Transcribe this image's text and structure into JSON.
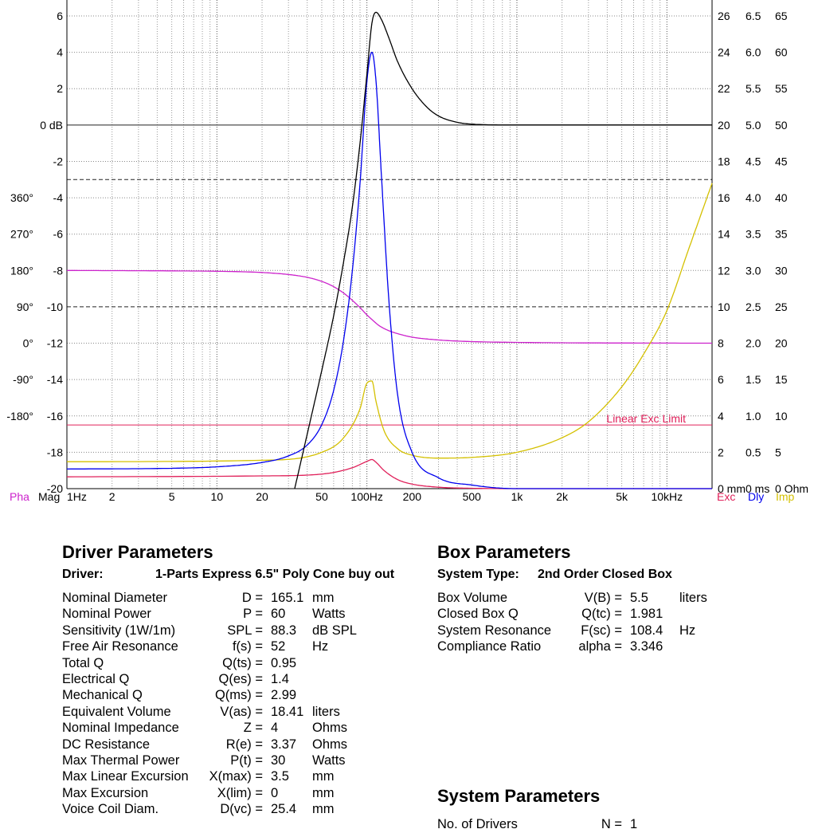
{
  "chart_data": {
    "type": "line",
    "xlabel": "",
    "x_scale": "log",
    "xlim": [
      1,
      20000
    ],
    "x_ticks": [
      {
        "v": 1,
        "label": "1Hz"
      },
      {
        "v": 2,
        "label": "2"
      },
      {
        "v": 5,
        "label": "5"
      },
      {
        "v": 10,
        "label": "10"
      },
      {
        "v": 20,
        "label": "20"
      },
      {
        "v": 50,
        "label": "50"
      },
      {
        "v": 100,
        "label": "100Hz"
      },
      {
        "v": 200,
        "label": "200"
      },
      {
        "v": 500,
        "label": "500"
      },
      {
        "v": 1000,
        "label": "1k"
      },
      {
        "v": 2000,
        "label": "2k"
      },
      {
        "v": 5000,
        "label": "5k"
      },
      {
        "v": 10000,
        "label": "10kHz"
      }
    ],
    "mag_axis": {
      "label": "Mag",
      "ylim": [
        -20,
        6
      ],
      "ticks": [
        "6",
        "4",
        "2",
        "0 dB",
        "-2",
        "-4",
        "-6",
        "-8",
        "-10",
        "-12",
        "-14",
        "-16",
        "-18",
        "-20"
      ]
    },
    "phase_axis": {
      "label": "Pha",
      "ticks": [
        "360°",
        "270°",
        "180°",
        "90°",
        "0°",
        "-90°",
        "-180°"
      ]
    },
    "exc_axis": {
      "label": "Exc",
      "unit": "0 mm",
      "ticks": [
        "26",
        "24",
        "22",
        "20",
        "18",
        "16",
        "14",
        "12",
        "10",
        "8",
        "6",
        "4",
        "2",
        "0 mm"
      ]
    },
    "dly_axis": {
      "label": "Dly",
      "unit": "0 ms",
      "ticks": [
        "6.5",
        "6.0",
        "5.5",
        "5.0",
        "4.5",
        "4.0",
        "3.5",
        "3.0",
        "2.5",
        "2.0",
        "1.5",
        "1.0",
        "0.5",
        "0 ms"
      ]
    },
    "imp_axis": {
      "label": "Imp",
      "unit": "0 Ohm",
      "ticks": [
        "65",
        "60",
        "55",
        "50",
        "45",
        "40",
        "35",
        "30",
        "25",
        "20",
        "15",
        "10",
        "5",
        "0 Ohm"
      ]
    },
    "annotations": [
      {
        "text": "Linear Exc Limit",
        "color": "#e0205a"
      }
    ],
    "series": [
      {
        "key": "magnitude",
        "color": "#000000",
        "x": [
          33,
          40,
          50,
          60,
          70,
          80,
          90,
          100,
          108,
          115,
          125,
          140,
          160,
          200,
          250,
          300,
          400,
          500,
          1000,
          20000
        ],
        "y": [
          -20,
          -17,
          -13.5,
          -10.5,
          -7.5,
          -4.5,
          -1,
          2.8,
          5.6,
          6.2,
          5.8,
          4.8,
          3.5,
          2.0,
          1.0,
          0.5,
          0.15,
          0.05,
          0,
          0
        ]
      },
      {
        "key": "phase",
        "color": "#cc22cc",
        "x": [
          1,
          5,
          10,
          20,
          30,
          40,
          50,
          60,
          70,
          80,
          90,
          100,
          110,
          120,
          140,
          170,
          200,
          300,
          500,
          1000,
          2000,
          20000
        ],
        "y": [
          180,
          179,
          178,
          175,
          170,
          163,
          153,
          140,
          124,
          106,
          88,
          70,
          56,
          44,
          31,
          21,
          15,
          8,
          4,
          2,
          1,
          0
        ]
      },
      {
        "key": "excursion",
        "color": "#e0205a",
        "x": [
          1,
          20,
          50,
          80,
          100,
          108,
          115,
          130,
          160,
          200,
          300,
          500,
          1000,
          20000
        ],
        "y": [
          0.65,
          0.7,
          0.8,
          1.15,
          1.5,
          1.6,
          1.45,
          1.0,
          0.5,
          0.25,
          0.08,
          0.02,
          0,
          0
        ]
      },
      {
        "key": "delay",
        "color": "#0000ee",
        "x": [
          1,
          5,
          10,
          20,
          30,
          40,
          50,
          60,
          70,
          80,
          90,
          100,
          108,
          115,
          125,
          140,
          160,
          200,
          300,
          500,
          1000,
          20000
        ],
        "y": [
          0.27,
          0.28,
          0.3,
          0.36,
          0.45,
          0.6,
          0.88,
          1.35,
          2.05,
          3.0,
          4.2,
          5.6,
          6.0,
          5.6,
          4.3,
          2.6,
          1.3,
          0.5,
          0.15,
          0.05,
          0,
          0
        ]
      },
      {
        "key": "impedance",
        "color": "#d4c000",
        "x": [
          1,
          20,
          50,
          70,
          90,
          100,
          108,
          115,
          130,
          160,
          200,
          300,
          500,
          1000,
          2000,
          3000,
          5000,
          7000,
          10000,
          14000,
          20000
        ],
        "y": [
          3.7,
          3.9,
          5.0,
          7.0,
          11.0,
          14.5,
          14.8,
          12.0,
          8.0,
          5.5,
          4.6,
          4.2,
          4.3,
          5.0,
          7.0,
          9.2,
          14.0,
          18.5,
          24.5,
          33.0,
          42.0
        ]
      }
    ],
    "linear_exc_limit": 3.5
  },
  "driver": {
    "title": "Driver Parameters",
    "header_key": "Driver:",
    "header_value": "1-Parts Express  6.5\" Poly Cone buy out",
    "rows": [
      {
        "name": "Nominal Diameter",
        "sym": "D =",
        "val": "165.1",
        "unit": "mm"
      },
      {
        "name": "Nominal Power",
        "sym": "P =",
        "val": "60",
        "unit": "Watts"
      },
      {
        "name": "Sensitivity (1W/1m)",
        "sym": "SPL =",
        "val": "88.3",
        "unit": "dB SPL"
      },
      {
        "name": "Free Air Resonance",
        "sym": "f(s) =",
        "val": "52",
        "unit": "Hz"
      },
      {
        "name": "Total Q",
        "sym": "Q(ts) =",
        "val": "0.95",
        "unit": ""
      },
      {
        "name": "Electrical Q",
        "sym": "Q(es) =",
        "val": "1.4",
        "unit": ""
      },
      {
        "name": "Mechanical Q",
        "sym": "Q(ms) =",
        "val": "2.99",
        "unit": ""
      },
      {
        "name": "Equivalent Volume",
        "sym": "V(as) =",
        "val": "18.41",
        "unit": "liters"
      },
      {
        "name": "Nominal Impedance",
        "sym": "Z =",
        "val": "4",
        "unit": "Ohms"
      },
      {
        "name": "DC Resistance",
        "sym": "R(e) =",
        "val": "3.37",
        "unit": "Ohms"
      },
      {
        "name": "Max Thermal Power",
        "sym": "P(t) =",
        "val": "30",
        "unit": "Watts"
      },
      {
        "name": "Max Linear Excursion",
        "sym": "X(max) =",
        "val": "3.5",
        "unit": "mm"
      },
      {
        "name": "Max Excursion",
        "sym": "X(lim) =",
        "val": "0",
        "unit": "mm"
      },
      {
        "name": "Voice Coil Diam.",
        "sym": "D(vc) =",
        "val": "25.4",
        "unit": "mm"
      }
    ]
  },
  "box": {
    "title": "Box Parameters",
    "header_key": "System Type:",
    "header_value": "2nd Order Closed Box",
    "rows": [
      {
        "name": "Box Volume",
        "sym": "V(B) =",
        "val": "5.5",
        "unit": "liters"
      },
      {
        "name": "Closed Box Q",
        "sym": "Q(tc) =",
        "val": "1.981",
        "unit": ""
      },
      {
        "name": "System Resonance",
        "sym": "F(sc) =",
        "val": "108.4",
        "unit": "Hz"
      },
      {
        "name": "Compliance Ratio",
        "sym": "alpha =",
        "val": "3.346",
        "unit": ""
      }
    ]
  },
  "system": {
    "title": "System Parameters",
    "rows": [
      {
        "name": "No. of Drivers",
        "sym": "N =",
        "val": "1",
        "unit": ""
      }
    ]
  }
}
